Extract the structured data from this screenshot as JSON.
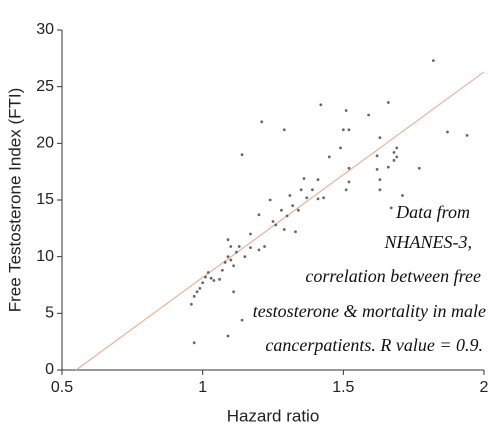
{
  "chart_data": {
    "type": "scatter",
    "xlabel": "Hazard ratio",
    "ylabel": "Free Testosterone Index (FTI)",
    "xlim": [
      0.5,
      2
    ],
    "ylim": [
      0,
      30
    ],
    "xticks": [
      0.5,
      1,
      1.5,
      2
    ],
    "yticks": [
      0,
      5,
      10,
      15,
      20,
      25,
      30
    ],
    "series": [
      {
        "color": "#666666",
        "x": [
          0.97,
          1.09,
          0.96,
          0.97,
          0.98,
          0.99,
          1.0,
          1.01,
          1.02,
          1.03,
          1.04,
          1.06,
          1.07,
          1.08,
          1.09,
          1.1,
          1.11,
          1.12,
          1.09,
          1.1,
          1.13,
          1.15,
          1.17,
          1.17,
          1.14,
          1.11,
          1.2,
          1.22,
          1.2,
          1.24,
          1.25,
          1.26,
          1.28,
          1.29,
          1.3,
          1.32,
          1.31,
          1.33,
          1.34,
          1.35,
          1.36,
          1.37,
          1.39,
          1.41,
          1.43,
          1.41,
          1.45,
          1.49,
          1.5,
          1.52,
          1.52,
          1.51,
          1.52,
          1.29,
          1.21,
          1.14,
          1.42,
          1.51,
          1.59,
          1.66,
          1.62,
          1.62,
          1.63,
          1.63,
          1.66,
          1.68,
          1.68,
          1.69,
          1.63,
          1.69,
          1.82,
          1.87,
          1.94,
          1.77,
          1.71,
          1.67
        ],
        "values": [
          2.4,
          3.0,
          5.8,
          6.5,
          6.9,
          7.2,
          7.7,
          8.2,
          8.6,
          8.1,
          7.9,
          8.0,
          8.8,
          9.5,
          10.0,
          9.7,
          9.2,
          10.4,
          11.5,
          10.9,
          10.9,
          10.0,
          12.0,
          10.8,
          4.4,
          6.9,
          10.6,
          10.9,
          13.7,
          15.0,
          13.1,
          12.8,
          14.1,
          12.4,
          13.6,
          14.5,
          15.4,
          12.2,
          14.1,
          15.9,
          16.9,
          15.2,
          15.9,
          16.8,
          15.2,
          15.1,
          18.8,
          19.6,
          21.2,
          21.2,
          17.8,
          15.9,
          16.6,
          21.2,
          21.9,
          19.0,
          23.4,
          22.9,
          22.5,
          23.6,
          17.7,
          18.9,
          16.8,
          15.9,
          17.9,
          18.5,
          19.2,
          18.8,
          20.5,
          19.6,
          27.3,
          21.0,
          20.7,
          17.8,
          15.4,
          14.3
        ]
      }
    ],
    "fit_line": {
      "color": "#e8b39a",
      "x": [
        0.55,
        2
      ],
      "values": [
        0,
        26.3
      ]
    },
    "annotation": [
      "Data from",
      "NHANES-3,",
      "correlation between free",
      "testosterone & mortality in male",
      "cancerpatients. R value = 0.9."
    ]
  }
}
